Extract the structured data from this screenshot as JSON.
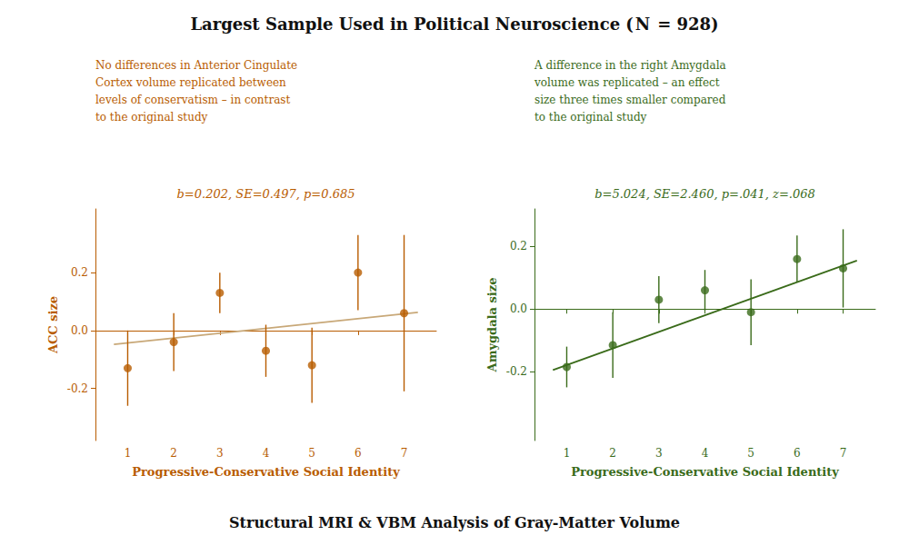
{
  "title": "Largest Sample Used in Political Neuroscience ( N  = 928)",
  "footer": "Structural MRI & VBM Analysis of Gray-Matter Volume",
  "chart_data": [
    {
      "type": "scatter",
      "text": "No differences in Anterior Cingulate\nCortex volume replicated between\nlevels of conservatism – in contrast\nto the original study",
      "annotation": "b=0.202, SE=0.497, p=0.685",
      "xlabel": "Progressive-Conservative Social Identity",
      "ylabel": "ACC size",
      "x": [
        1,
        2,
        3,
        4,
        5,
        6,
        7
      ],
      "values": [
        -0.13,
        -0.04,
        0.13,
        -0.07,
        -0.12,
        0.2,
        0.06
      ],
      "error": [
        0.13,
        0.1,
        0.07,
        0.09,
        0.13,
        0.13,
        0.27
      ],
      "color": "#b85c00",
      "fit_line": {
        "x": [
          0.7,
          7.3
        ],
        "values": [
          -0.048,
          0.063
        ],
        "color": "#c8a878"
      },
      "xlim": [
        0.3,
        7.7
      ],
      "ylim": [
        -0.38,
        0.42
      ],
      "xticks": [
        1,
        2,
        3,
        4,
        5,
        6,
        7
      ],
      "yticks": [
        -0.2,
        {
          "value": 0,
          "label": "0.0"
        },
        0.2
      ],
      "grid": false
    },
    {
      "type": "scatter",
      "text": "A difference in the right Amygdala\nvolume was replicated – an effect\nsize three times smaller compared\nto the original study",
      "annotation": "b=5.024, SE=2.460, p=.041, z=.068",
      "xlabel": "Progressive-Conservative Social Identity",
      "ylabel": "Amygdala size",
      "x": [
        1,
        2,
        3,
        4,
        5,
        6,
        7
      ],
      "values": [
        -0.185,
        -0.115,
        0.03,
        0.06,
        -0.01,
        0.16,
        0.13
      ],
      "error": [
        0.065,
        0.105,
        0.075,
        0.065,
        0.105,
        0.075,
        0.125
      ],
      "color": "#3a6b1a",
      "fit_line": {
        "x": [
          0.7,
          7.3
        ],
        "values": [
          -0.195,
          0.155
        ],
        "color": "#3a6b1a"
      },
      "xlim": [
        0.3,
        7.7
      ],
      "ylim": [
        -0.42,
        0.32
      ],
      "xticks": [
        1,
        2,
        3,
        4,
        5,
        6,
        7
      ],
      "yticks": [
        -0.2,
        {
          "value": 0,
          "label": "0.0"
        },
        0.2
      ],
      "grid": false
    }
  ]
}
